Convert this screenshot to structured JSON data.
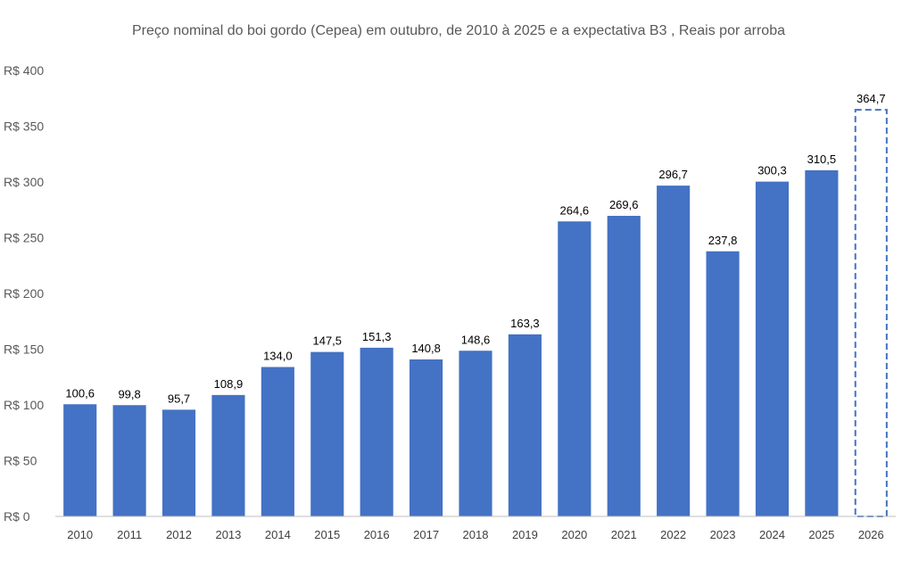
{
  "chart_data": {
    "type": "bar",
    "title": "Preço nominal do boi gordo (Cepea) em outubro, de 2010 à 2025 e a expectativa B3 , Reais por arroba",
    "xlabel": "",
    "ylabel": "",
    "categories": [
      "2010",
      "2011",
      "2012",
      "2013",
      "2014",
      "2015",
      "2016",
      "2017",
      "2018",
      "2019",
      "2020",
      "2021",
      "2022",
      "2023",
      "2024",
      "2025",
      "2026"
    ],
    "values": [
      100.6,
      99.8,
      95.7,
      108.9,
      134.0,
      147.5,
      151.3,
      140.8,
      148.6,
      163.3,
      264.6,
      269.6,
      296.7,
      237.8,
      300.3,
      310.5,
      364.7
    ],
    "data_labels": [
      "100,6",
      "99,8",
      "95,7",
      "108,9",
      "134,0",
      "147,5",
      "151,3",
      "140,8",
      "148,6",
      "163,3",
      "264,6",
      "269,6",
      "296,7",
      "237,8",
      "300,3",
      "310,5",
      "364,7"
    ],
    "bar_styles": [
      "solid",
      "solid",
      "solid",
      "solid",
      "solid",
      "solid",
      "solid",
      "solid",
      "solid",
      "solid",
      "solid",
      "solid",
      "solid",
      "solid",
      "solid",
      "solid",
      "dashed-outline"
    ],
    "y_ticks": [
      "R$ 0",
      "R$ 50",
      "R$ 100",
      "R$ 150",
      "R$ 200",
      "R$ 250",
      "R$ 300",
      "R$ 350",
      "R$ 400"
    ],
    "y_tick_values": [
      0,
      50,
      100,
      150,
      200,
      250,
      300,
      350,
      400
    ],
    "ylim": [
      0,
      400
    ],
    "grid": false,
    "legend": "none",
    "colors": {
      "bar": "#4472C4",
      "axis": "#BFBFBF",
      "text": "#595959"
    }
  }
}
